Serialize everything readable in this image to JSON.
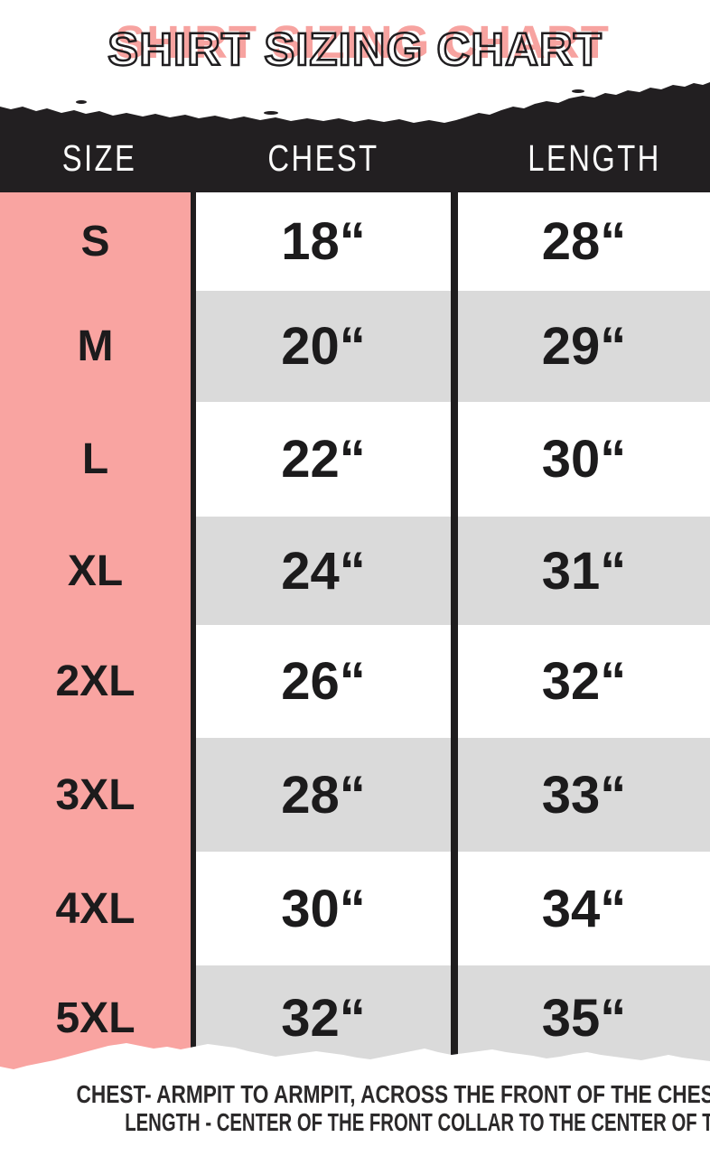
{
  "title": "SHIRT SIZING CHART",
  "colors": {
    "accent_pink": "#F9A4A1",
    "title_pink": "#F7A3A0",
    "band_black": "#221F21",
    "stripe_gray": "#DADADA",
    "text_dark": "#1C1B1C"
  },
  "chart_data": {
    "type": "table",
    "title": "SHIRT SIZING CHART",
    "columns": [
      "SIZE",
      "CHEST",
      "LENGTH"
    ],
    "rows": [
      [
        "S",
        "18“",
        "28“"
      ],
      [
        "M",
        "20“",
        "29“"
      ],
      [
        "L",
        "22“",
        "30“"
      ],
      [
        "XL",
        "24“",
        "31“"
      ],
      [
        "2XL",
        "26“",
        "32“"
      ],
      [
        "3XL",
        "28“",
        "33“"
      ],
      [
        "4XL",
        "30“",
        "34“"
      ],
      [
        "5XL",
        "32“",
        "35“"
      ]
    ],
    "units": "inches",
    "layout": "size column pink, rows alternate white/gray, black torn-paper header band"
  },
  "footer": {
    "line1": "CHEST- ARMPIT TO ARMPIT, ACROSS THE FRONT OF THE CHEST",
    "line2": "LENGTH - CENTER OF THE FRONT COLLAR TO THE CENTER OF THE TAIL"
  }
}
